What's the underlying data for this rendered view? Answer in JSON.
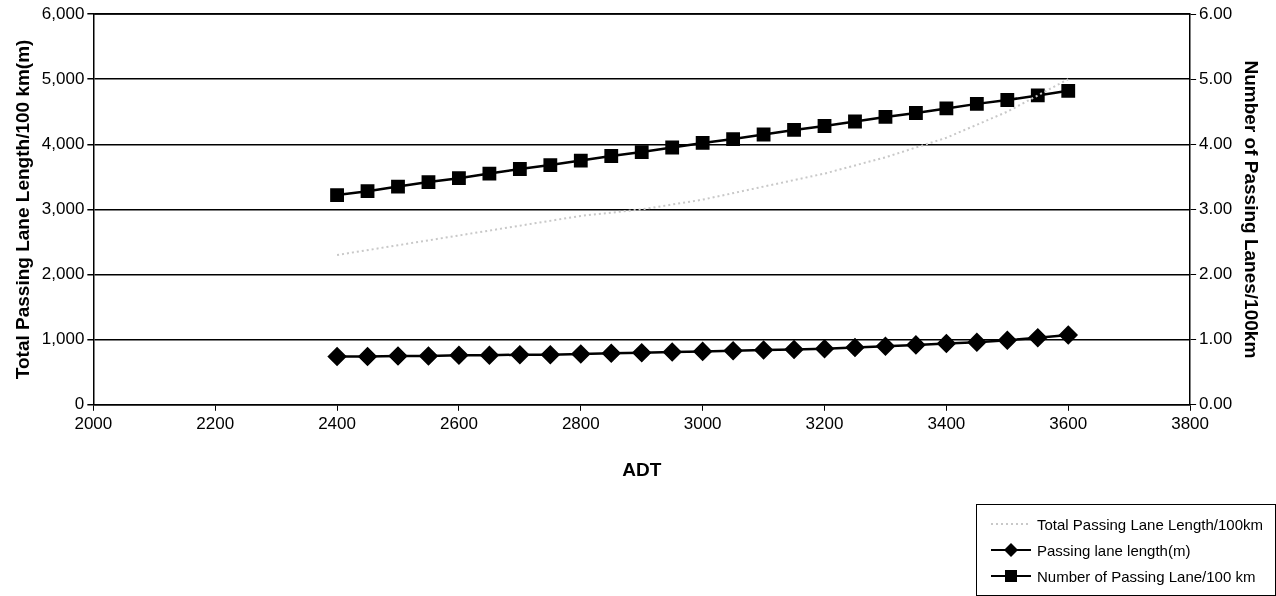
{
  "chart_data": {
    "type": "line",
    "xlabel": "ADT",
    "ylabel": "Total Passing Lane Length/100 km(m)",
    "y2label": "Number of Passing Lanes/100km",
    "xlim": [
      2000,
      3800
    ],
    "xticks": [
      2000,
      2200,
      2400,
      2600,
      2800,
      3000,
      3200,
      3400,
      3600,
      3800
    ],
    "ylim": [
      0,
      6000
    ],
    "yticks": [
      0,
      {
        "value": 1000,
        "label": "1,000"
      },
      {
        "value": 2000,
        "label": "2,000"
      },
      {
        "value": 3000,
        "label": "3,000"
      },
      {
        "value": 4000,
        "label": "4,000"
      },
      {
        "value": 5000,
        "label": "5,000"
      },
      {
        "value": 6000,
        "label": "6,000"
      }
    ],
    "y2lim": [
      0,
      6
    ],
    "y2ticks": [
      {
        "value": 0,
        "label": "0.00"
      },
      {
        "value": 1,
        "label": "1.00"
      },
      {
        "value": 2,
        "label": "2.00"
      },
      {
        "value": 3,
        "label": "3.00"
      },
      {
        "value": 4,
        "label": "4.00"
      },
      {
        "value": 5,
        "label": "5.00"
      },
      {
        "value": 6,
        "label": "6.00"
      }
    ],
    "grid": "y",
    "legend": "bottom right",
    "series": [
      {
        "name": "Total Passing Lane Length/100km",
        "color": "#c8c8c8",
        "line_style": "dotted",
        "marker": "none",
        "x": [
          2400,
          2500,
          2600,
          2700,
          2800,
          2900,
          3000,
          3100,
          3200,
          3300,
          3400,
          3500,
          3600
        ],
        "values": [
          2300,
          2450,
          2600,
          2750,
          2900,
          3000,
          3150,
          3350,
          3550,
          3800,
          4100,
          4500,
          5000
        ]
      },
      {
        "name": "Passing lane length(m)",
        "color": "#000000",
        "marker": "diamond",
        "line_style": "solid",
        "x": [
          2400,
          2450,
          2500,
          2550,
          2600,
          2650,
          2700,
          2750,
          2800,
          2850,
          2900,
          2950,
          3000,
          3050,
          3100,
          3150,
          3200,
          3250,
          3300,
          3350,
          3400,
          3450,
          3500,
          3550,
          3600
        ],
        "values": [
          740,
          740,
          750,
          750,
          760,
          760,
          770,
          770,
          780,
          790,
          800,
          810,
          820,
          830,
          840,
          850,
          860,
          880,
          900,
          920,
          940,
          960,
          990,
          1030,
          1070
        ]
      },
      {
        "name": "Number of Passing Lane/100 km",
        "color": "#000000",
        "marker": "square",
        "line_style": "solid",
        "axis": "y2",
        "x": [
          2400,
          2450,
          2500,
          2550,
          2600,
          2650,
          2700,
          2750,
          2800,
          2850,
          2900,
          2950,
          3000,
          3050,
          3100,
          3150,
          3200,
          3250,
          3300,
          3350,
          3400,
          3450,
          3500,
          3550,
          3600
        ],
        "values": [
          3.22,
          3.28,
          3.35,
          3.42,
          3.48,
          3.55,
          3.62,
          3.68,
          3.75,
          3.82,
          3.88,
          3.95,
          4.02,
          4.08,
          4.15,
          4.22,
          4.28,
          4.35,
          4.42,
          4.48,
          4.55,
          4.62,
          4.68,
          4.75,
          4.82
        ]
      }
    ]
  }
}
